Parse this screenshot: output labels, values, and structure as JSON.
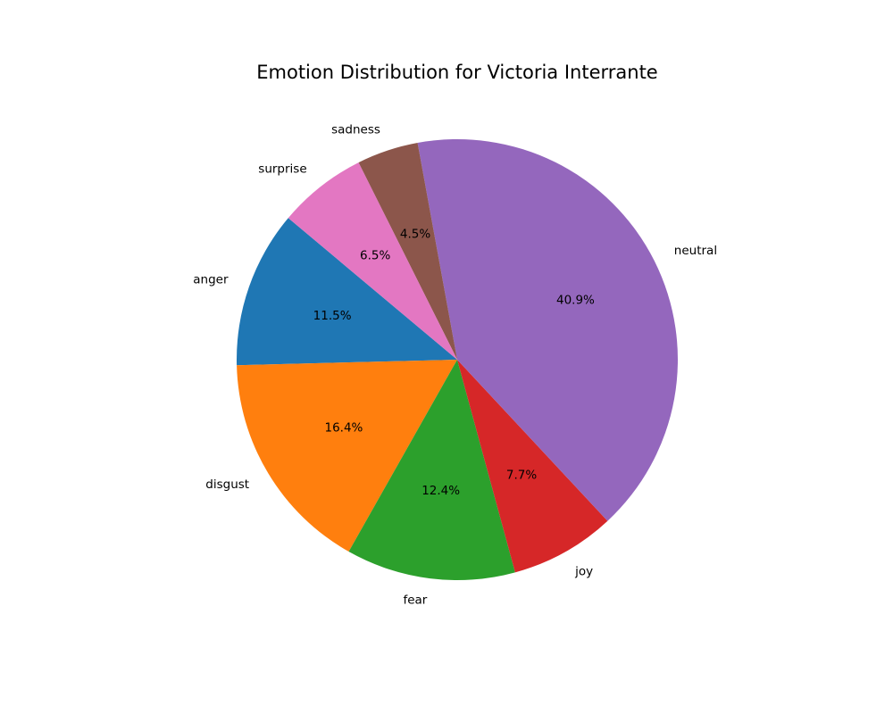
{
  "chart_data": {
    "type": "pie",
    "title": "Emotion Distribution for Victoria Interrante",
    "start_angle_deg": 140,
    "direction": "counterclockwise",
    "slices": [
      {
        "label": "anger",
        "value": 11.5,
        "pct_text": "11.5%",
        "color": "#1f77b4"
      },
      {
        "label": "disgust",
        "value": 16.4,
        "pct_text": "16.4%",
        "color": "#ff7f0e"
      },
      {
        "label": "fear",
        "value": 12.4,
        "pct_text": "12.4%",
        "color": "#2ca02c"
      },
      {
        "label": "joy",
        "value": 7.7,
        "pct_text": "7.7%",
        "color": "#d62728"
      },
      {
        "label": "neutral",
        "value": 40.9,
        "pct_text": "40.9%",
        "color": "#9467bd"
      },
      {
        "label": "sadness",
        "value": 4.5,
        "pct_text": "4.5%",
        "color": "#8c564b"
      },
      {
        "label": "surprise",
        "value": 6.5,
        "pct_text": "6.5%",
        "color": "#e377c2"
      }
    ]
  }
}
